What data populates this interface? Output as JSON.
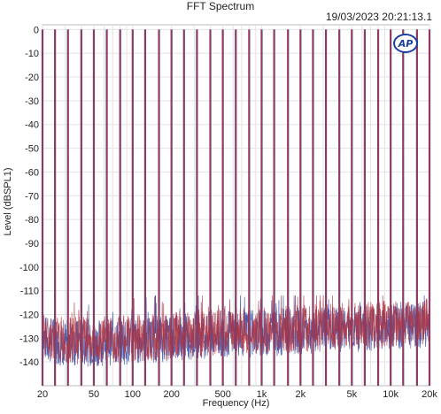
{
  "header": {
    "title": "FFT Spectrum",
    "timestamp": "19/03/2023 20:21:13.1",
    "logo": "AP"
  },
  "chart_data": {
    "type": "line",
    "title": "FFT Spectrum",
    "xlabel": "Frequency (Hz)",
    "ylabel": "Level (dBSPL1)",
    "x_scale": "log",
    "xlim": [
      20,
      20000
    ],
    "ylim": [
      -150,
      2
    ],
    "grid": true,
    "x_ticks": [
      {
        "value": 20,
        "label": "20"
      },
      {
        "value": 50,
        "label": "50"
      },
      {
        "value": 100,
        "label": "100"
      },
      {
        "value": 200,
        "label": "200"
      },
      {
        "value": 500,
        "label": "500"
      },
      {
        "value": 1000,
        "label": "1k"
      },
      {
        "value": 2000,
        "label": "2k"
      },
      {
        "value": 5000,
        "label": "5k"
      },
      {
        "value": 10000,
        "label": "10k"
      },
      {
        "value": 20000,
        "label": "20k"
      }
    ],
    "y_ticks": [
      0,
      -10,
      -20,
      -30,
      -40,
      -50,
      -60,
      -70,
      -80,
      -90,
      -100,
      -110,
      -120,
      -130,
      -140
    ],
    "series_colors": [
      "#3a4fa8",
      "#b0333f"
    ],
    "tone_frequencies_hz": [
      20,
      25,
      31.5,
      40,
      50,
      63,
      80,
      100,
      125,
      160,
      200,
      250,
      315,
      400,
      500,
      630,
      800,
      1000,
      1250,
      1600,
      2000,
      2500,
      3150,
      4000,
      5000,
      6300,
      8000,
      10000,
      12500,
      16000,
      20000
    ],
    "tone_level_db": 0,
    "noise_floor": [
      {
        "x": 20,
        "y": -130
      },
      {
        "x": 30,
        "y": -132
      },
      {
        "x": 50,
        "y": -132
      },
      {
        "x": 100,
        "y": -131
      },
      {
        "x": 200,
        "y": -130
      },
      {
        "x": 500,
        "y": -128
      },
      {
        "x": 1000,
        "y": -128
      },
      {
        "x": 2000,
        "y": -127
      },
      {
        "x": 5000,
        "y": -126
      },
      {
        "x": 10000,
        "y": -125
      },
      {
        "x": 20000,
        "y": -124
      }
    ],
    "spurs": [
      {
        "x": 150,
        "y": -112
      },
      {
        "x": 400,
        "y": -118
      }
    ]
  }
}
